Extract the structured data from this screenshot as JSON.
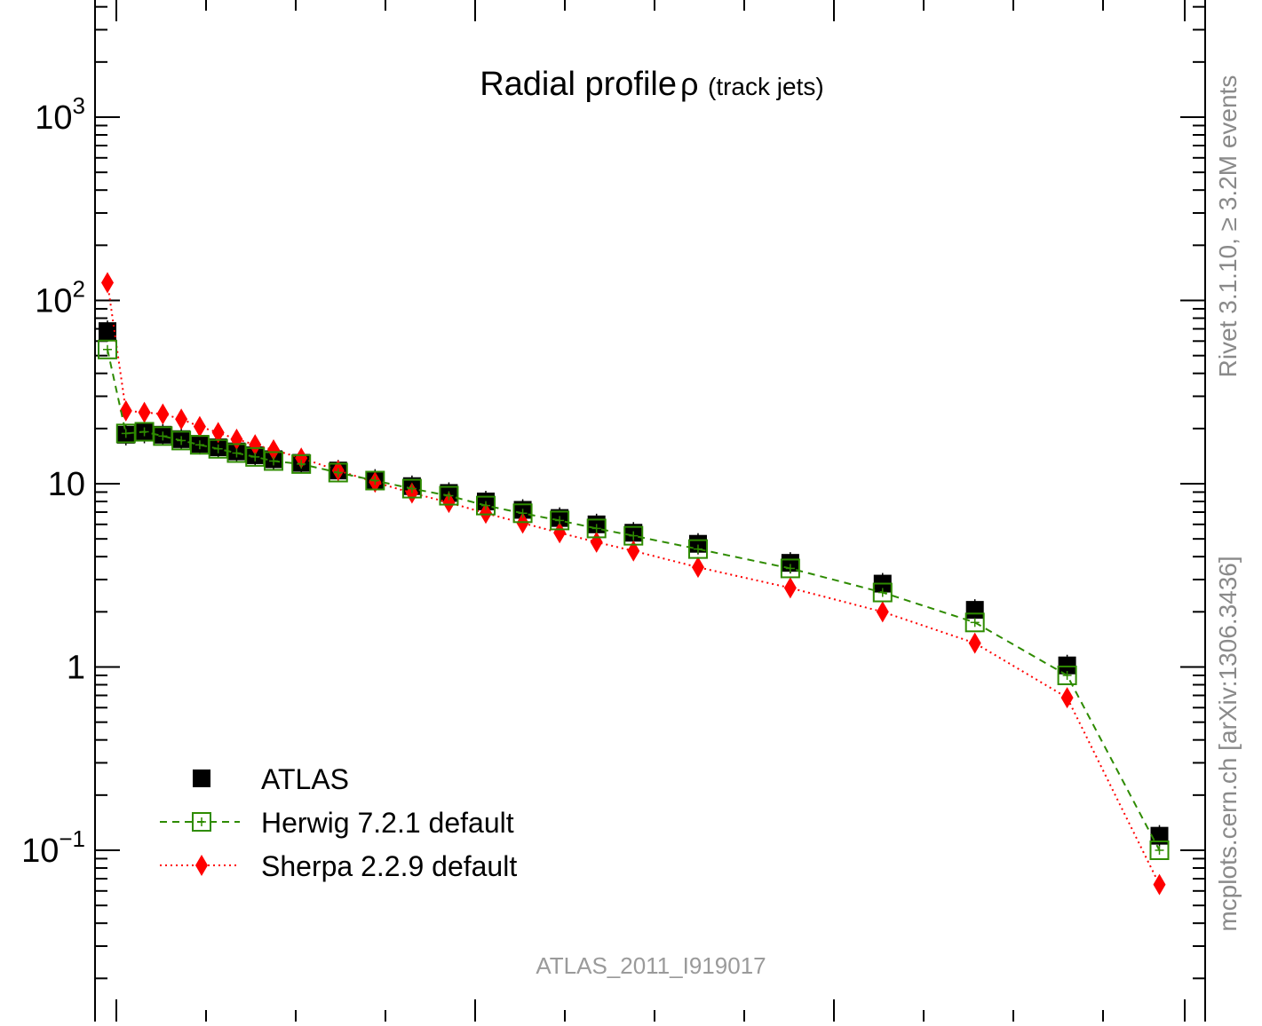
{
  "chart_data": {
    "type": "scatter",
    "title": "Radial profile",
    "title_symbol": "ρ",
    "subtitle": "(track jets)",
    "xlabel": "",
    "ylabel": "",
    "yscale": "log",
    "ylim": [
      0.02,
      4000
    ],
    "xlim": [
      -0.02,
      0.6
    ],
    "grid": false,
    "legend_position": "bottom-left",
    "x": [
      0.005,
      0.015,
      0.025,
      0.035,
      0.045,
      0.055,
      0.065,
      0.075,
      0.085,
      0.095,
      0.11,
      0.13,
      0.15,
      0.17,
      0.19,
      0.21,
      0.23,
      0.25,
      0.27,
      0.29,
      0.325,
      0.375,
      0.425,
      0.475,
      0.525,
      0.575
    ],
    "series": [
      {
        "name": "ATLAS",
        "color": "#000000",
        "marker": "filled-square",
        "line": "none",
        "values": [
          68,
          18.5,
          19,
          18.5,
          17.5,
          16.5,
          15.8,
          15,
          14.3,
          13.6,
          13,
          11.8,
          10.5,
          9.7,
          8.9,
          8.0,
          7.2,
          6.5,
          6.0,
          5.4,
          4.7,
          3.7,
          2.85,
          2.05,
          1.02,
          0.12
        ]
      },
      {
        "name": "Herwig 7.2.1 default",
        "color": "#2e8b00",
        "marker": "open-square",
        "line": "dashed",
        "values": [
          54,
          18.8,
          19.2,
          18.2,
          17.2,
          16.3,
          15.5,
          14.7,
          14.0,
          13.3,
          12.8,
          11.5,
          10.4,
          9.4,
          8.6,
          7.6,
          6.9,
          6.3,
          5.7,
          5.2,
          4.4,
          3.45,
          2.55,
          1.75,
          0.9,
          0.1
        ]
      },
      {
        "name": "Sherpa 2.2.9 default",
        "color": "#ff0000",
        "marker": "diamond",
        "line": "dotted",
        "values": [
          125,
          25,
          24.5,
          24,
          22.5,
          20.5,
          19,
          17.5,
          16.3,
          15.3,
          13.8,
          11.8,
          10.2,
          8.9,
          7.9,
          6.9,
          6.1,
          5.4,
          4.8,
          4.3,
          3.5,
          2.7,
          2.0,
          1.35,
          0.68,
          0.065
        ]
      }
    ],
    "y_ticks": [
      {
        "value": 1000,
        "base": "10",
        "exp": "3"
      },
      {
        "value": 100,
        "base": "10",
        "exp": "2"
      },
      {
        "value": 10,
        "base": "10",
        "exp": ""
      },
      {
        "value": 1,
        "base": "1",
        "exp": ""
      },
      {
        "value": 0.1,
        "base": "10",
        "exp": "−1"
      }
    ],
    "annotation": "ATLAS_2011_I919017",
    "side_label_top": "Rivet 3.1.10, ≥ 3.2M events",
    "side_label_bottom": "mcplots.cern.ch [arXiv:1306.3436]"
  }
}
